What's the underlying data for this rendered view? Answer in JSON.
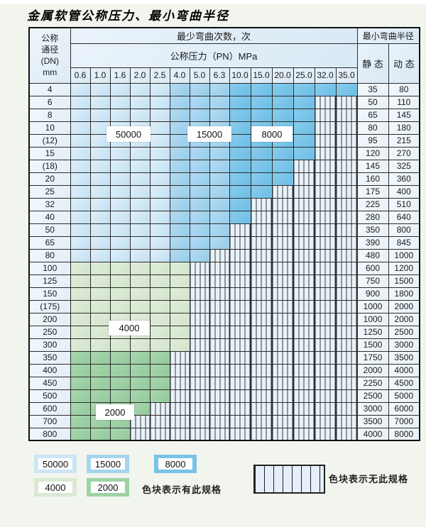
{
  "title": "金属软管公称压力、最小弯曲半径",
  "table": {
    "corner_lines": [
      "公称",
      "通径",
      "(DN)",
      "mm"
    ],
    "bend_cycles_header": "最少弯曲次数，次",
    "bend_radius_header": "最小弯曲半径",
    "pressure_header": "公称压力（PN）MPa",
    "static_header": "静 态",
    "dynamic_header": "动 态",
    "pressure_columns": [
      "0.6",
      "1.0",
      "1.6",
      "2.0",
      "2.5",
      "4.0",
      "5.0",
      "6.3",
      "10.0",
      "15.0",
      "20.0",
      "25.0",
      "32.0",
      "35.0"
    ],
    "zone_by_column": [
      "50000",
      "50000",
      "50000",
      "50000",
      "50000",
      "15000",
      "15000",
      "15000",
      "8000",
      "8000",
      "8000",
      "8000",
      "8000",
      "8000"
    ],
    "rows": [
      {
        "dn": "4",
        "colored_cols": 14,
        "zone": "blue",
        "static": "35",
        "dynamic": "80"
      },
      {
        "dn": "6",
        "colored_cols": 12,
        "zone": "blue",
        "static": "50",
        "dynamic": "110"
      },
      {
        "dn": "8",
        "colored_cols": 12,
        "zone": "blue",
        "static": "65",
        "dynamic": "145"
      },
      {
        "dn": "10",
        "colored_cols": 12,
        "zone": "blue",
        "static": "80",
        "dynamic": "180"
      },
      {
        "dn": "(12)",
        "colored_cols": 12,
        "zone": "blue",
        "static": "95",
        "dynamic": "215"
      },
      {
        "dn": "15",
        "colored_cols": 12,
        "zone": "blue",
        "static": "120",
        "dynamic": "270"
      },
      {
        "dn": "(18)",
        "colored_cols": 11,
        "zone": "blue",
        "static": "145",
        "dynamic": "325"
      },
      {
        "dn": "20",
        "colored_cols": 11,
        "zone": "blue",
        "static": "160",
        "dynamic": "360"
      },
      {
        "dn": "25",
        "colored_cols": 10,
        "zone": "blue",
        "static": "175",
        "dynamic": "400"
      },
      {
        "dn": "32",
        "colored_cols": 9,
        "zone": "blue",
        "static": "225",
        "dynamic": "510"
      },
      {
        "dn": "40",
        "colored_cols": 9,
        "zone": "blue",
        "static": "280",
        "dynamic": "640"
      },
      {
        "dn": "50",
        "colored_cols": 8,
        "zone": "blue",
        "static": "350",
        "dynamic": "800"
      },
      {
        "dn": "65",
        "colored_cols": 8,
        "zone": "blue",
        "static": "390",
        "dynamic": "845"
      },
      {
        "dn": "80",
        "colored_cols": 7,
        "zone": "blue",
        "static": "480",
        "dynamic": "1000"
      },
      {
        "dn": "100",
        "colored_cols": 6,
        "zone": "green4000",
        "static": "600",
        "dynamic": "1200"
      },
      {
        "dn": "125",
        "colored_cols": 6,
        "zone": "green4000",
        "static": "750",
        "dynamic": "1500"
      },
      {
        "dn": "150",
        "colored_cols": 6,
        "zone": "green4000",
        "static": "900",
        "dynamic": "1800"
      },
      {
        "dn": "(175)",
        "colored_cols": 6,
        "zone": "green4000",
        "static": "1000",
        "dynamic": "2000"
      },
      {
        "dn": "200",
        "colored_cols": 6,
        "zone": "green4000",
        "static": "1000",
        "dynamic": "2000"
      },
      {
        "dn": "250",
        "colored_cols": 6,
        "zone": "green4000",
        "static": "1250",
        "dynamic": "2500"
      },
      {
        "dn": "300",
        "colored_cols": 6,
        "zone": "green4000",
        "static": "1500",
        "dynamic": "3000"
      },
      {
        "dn": "350",
        "colored_cols": 5,
        "zone": "green2000",
        "static": "1750",
        "dynamic": "3500"
      },
      {
        "dn": "400",
        "colored_cols": 5,
        "zone": "green2000",
        "static": "2000",
        "dynamic": "4000"
      },
      {
        "dn": "450",
        "colored_cols": 5,
        "zone": "green2000",
        "static": "2250",
        "dynamic": "4500"
      },
      {
        "dn": "500",
        "colored_cols": 5,
        "zone": "green2000",
        "static": "2500",
        "dynamic": "5000"
      },
      {
        "dn": "600",
        "colored_cols": 4,
        "zone": "green2000",
        "static": "3000",
        "dynamic": "6000"
      },
      {
        "dn": "700",
        "colored_cols": 3,
        "zone": "green2000",
        "static": "3500",
        "dynamic": "7000"
      },
      {
        "dn": "800",
        "colored_cols": 3,
        "zone": "green2000",
        "static": "4000",
        "dynamic": "8000"
      }
    ],
    "overlay_labels": {
      "cycles_50000": "50000",
      "cycles_15000": "15000",
      "cycles_8000": "8000",
      "cycles_4000": "4000",
      "cycles_2000": "2000"
    }
  },
  "legend": {
    "block_50000": "50000",
    "block_15000": "15000",
    "block_8000": "8000",
    "block_4000": "4000",
    "block_2000": "2000",
    "has_spec_text": "色块表示有此规格",
    "no_spec_text": "色块表示无此规格"
  },
  "colors": {
    "cycles_50000": "#cde5f6",
    "cycles_15000": "#a5d4ee",
    "cycles_8000": "#79c3e9",
    "cycles_4000": "#d9e9d4",
    "cycles_2000": "#9ed2a4",
    "hatch_background": "#e9f2fa"
  }
}
